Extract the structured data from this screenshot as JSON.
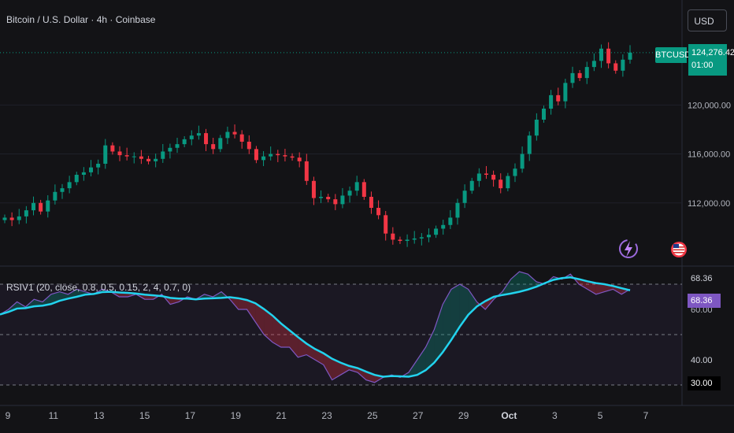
{
  "header": {
    "title": "Bitcoin / U.S. Dollar · 4h · Coinbase",
    "currency_button": "USD"
  },
  "price_scale": {
    "labels": [
      "120,000.00",
      "116,000.00",
      "112,000.00"
    ],
    "values": [
      120000,
      116000,
      112000
    ],
    "symbol_tag": "BTCUSD",
    "last_price": "124,276.42",
    "countdown": "01:00"
  },
  "indicator": {
    "title": "RSIV1 (20, close, 0.8, 0.5, 0.15, 2, 4, 0.7, 0)",
    "scale_labels": [
      "68.36",
      "60.00",
      "40.00",
      "30.00"
    ],
    "current_value": "68.36",
    "level_30_label": "30.00",
    "level_70": 70,
    "level_50": 50,
    "level_30": 30
  },
  "time_axis": {
    "labels": [
      "9",
      "11",
      "13",
      "15",
      "17",
      "19",
      "21",
      "23",
      "25",
      "27",
      "29",
      "Oct",
      "3",
      "5",
      "7"
    ]
  },
  "colors": {
    "up": "#089981",
    "down": "#f23645",
    "rsi": "#7e57c2",
    "ma": "#22d3ee",
    "bg": "#131316"
  },
  "icons": [
    "lightning-bolt-icon",
    "us-flag-icon"
  ],
  "chart_data": {
    "type": "candlestick",
    "close_approx": [
      110800,
      110600,
      110900,
      111400,
      112000,
      111300,
      112200,
      112900,
      113200,
      113700,
      114300,
      114500,
      114900,
      115200,
      116700,
      116200,
      115900,
      115800,
      115800,
      115600,
      115400,
      115600,
      116200,
      116500,
      116800,
      117200,
      117500,
      117700,
      116800,
      116400,
      117300,
      117800,
      117600,
      117000,
      116400,
      115500,
      115800,
      116000,
      115900,
      115800,
      115700,
      115400,
      113800,
      112400,
      112500,
      112300,
      111900,
      112600,
      113000,
      113700,
      112500,
      111600,
      111000,
      109500,
      109000,
      108900,
      109000,
      109100,
      109200,
      109400,
      109900,
      110200,
      110800,
      112000,
      113000,
      113800,
      114400,
      114300,
      113900,
      113200,
      114200,
      114800,
      116000,
      117500,
      118800,
      119700,
      120800,
      120300,
      121800,
      122600,
      122200,
      123100,
      123600,
      124600,
      123400,
      122800,
      123700,
      124276
    ],
    "rsi_approx": [
      58,
      60,
      63,
      61,
      64,
      63,
      66,
      67,
      66,
      68,
      67,
      66,
      68,
      67,
      65,
      65,
      66,
      64,
      64,
      66,
      62,
      63,
      65,
      64,
      66,
      65,
      67,
      64,
      60,
      60,
      55,
      50,
      47,
      45,
      45,
      41,
      42,
      40,
      38,
      32,
      34,
      36,
      35,
      32,
      31,
      33,
      34,
      33,
      35,
      40,
      45,
      52,
      62,
      68,
      70,
      68,
      63,
      60,
      64,
      67,
      72,
      75,
      74,
      71,
      70,
      73,
      72,
      74,
      70,
      68,
      66,
      67,
      68,
      66,
      68
    ]
  }
}
